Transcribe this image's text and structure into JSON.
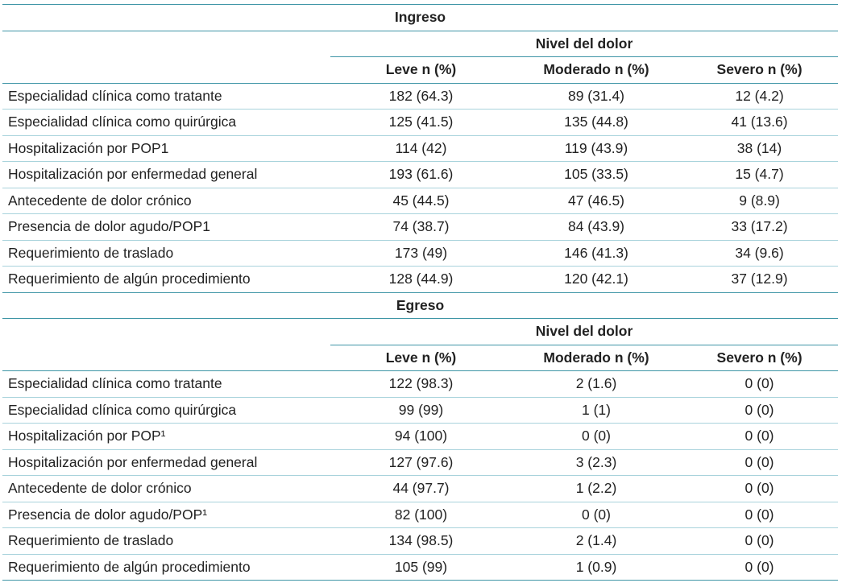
{
  "sections": [
    {
      "title": "Ingreso",
      "group_header": "Nivel del dolor",
      "columns": [
        "Leve n (%)",
        "Moderado n (%)",
        "Severo n (%)"
      ],
      "rows": [
        {
          "label": "Especialidad clínica como tratante",
          "cells": [
            "182 (64.3)",
            "89 (31.4)",
            "12 (4.2)"
          ]
        },
        {
          "label": "Especialidad clínica como quirúrgica",
          "cells": [
            "125 (41.5)",
            "135 (44.8)",
            "41 (13.6)"
          ]
        },
        {
          "label": "Hospitalización por POP1",
          "cells": [
            "114 (42)",
            "119 (43.9)",
            "38 (14)"
          ]
        },
        {
          "label": "Hospitalización por enfermedad general",
          "cells": [
            "193 (61.6)",
            "105 (33.5)",
            "15 (4.7)"
          ]
        },
        {
          "label": "Antecedente de dolor crónico",
          "cells": [
            "45 (44.5)",
            "47 (46.5)",
            "9 (8.9)"
          ]
        },
        {
          "label": "Presencia de dolor agudo/POP1",
          "cells": [
            "74 (38.7)",
            "84 (43.9)",
            "33 (17.2)"
          ]
        },
        {
          "label": "Requerimiento de traslado",
          "cells": [
            "173 (49)",
            "146 (41.3)",
            "34 (9.6)"
          ]
        },
        {
          "label": "Requerimiento de algún procedimiento",
          "cells": [
            "128 (44.9)",
            "120 (42.1)",
            "37 (12.9)"
          ]
        }
      ]
    },
    {
      "title": "Egreso",
      "group_header": "Nivel del dolor",
      "columns": [
        "Leve n (%)",
        "Moderado n (%)",
        "Severo n (%)"
      ],
      "rows": [
        {
          "label": "Especialidad clínica como tratante",
          "cells": [
            "122 (98.3)",
            "2 (1.6)",
            "0 (0)"
          ]
        },
        {
          "label": "Especialidad clínica como quirúrgica",
          "cells": [
            "99 (99)",
            "1 (1)",
            "0 (0)"
          ]
        },
        {
          "label": "Hospitalización por POP¹",
          "cells": [
            "94 (100)",
            "0 (0)",
            "0 (0)"
          ]
        },
        {
          "label": "Hospitalización por enfermedad general",
          "cells": [
            "127 (97.6)",
            "3 (2.3)",
            "0 (0)"
          ]
        },
        {
          "label": "Antecedente de dolor crónico",
          "cells": [
            "44 (97.7)",
            "1 (2.2)",
            "0 (0)"
          ]
        },
        {
          "label": "Presencia de dolor agudo/POP¹",
          "cells": [
            "82 (100)",
            "0 (0)",
            "0 (0)"
          ]
        },
        {
          "label": "Requerimiento de traslado",
          "cells": [
            "134 (98.5)",
            "2 (1.4)",
            "0 (0)"
          ]
        },
        {
          "label": "Requerimiento de algún procedimiento",
          "cells": [
            "105 (99)",
            "1 (0.9)",
            "0 (0)"
          ]
        }
      ]
    }
  ]
}
